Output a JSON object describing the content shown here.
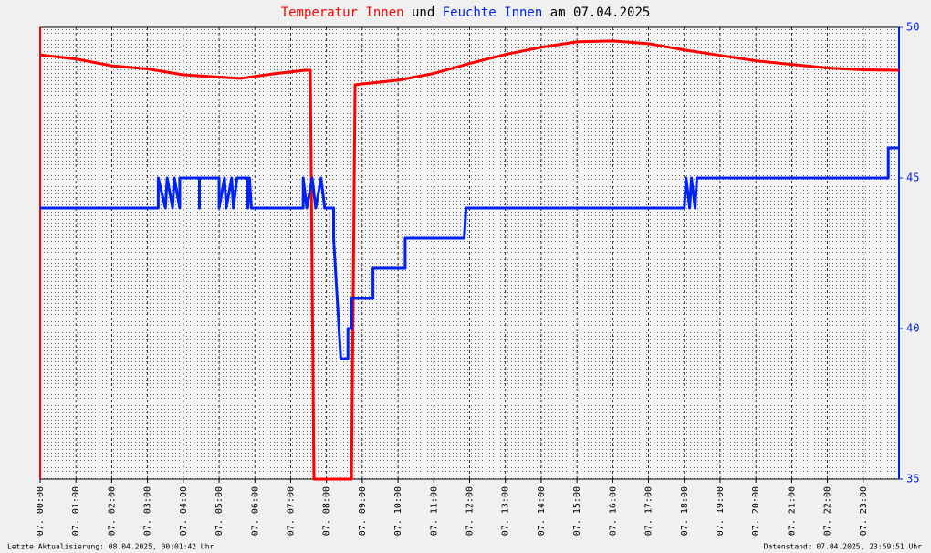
{
  "chart_data": {
    "type": "line",
    "title_parts": [
      "und",
      "am 07.04.2025"
    ],
    "footer_left": "Letzte Aktualisierung: 08.04.2025, 00:01:42 Uhr",
    "footer_right": "Datenstand: 07.04.2025, 23:59:51 Uhr",
    "xlim": [
      0,
      24
    ],
    "xticks": [
      {
        "value": 0,
        "label": "07. 00:00"
      },
      {
        "value": 1,
        "label": "07. 01:00"
      },
      {
        "value": 2,
        "label": "07. 02:00"
      },
      {
        "value": 3,
        "label": "07. 03:00"
      },
      {
        "value": 4,
        "label": "07. 04:00"
      },
      {
        "value": 5,
        "label": "07. 05:00"
      },
      {
        "value": 6,
        "label": "07. 06:00"
      },
      {
        "value": 7,
        "label": "07. 07:00"
      },
      {
        "value": 8,
        "label": "07. 08:00"
      },
      {
        "value": 9,
        "label": "07. 09:00"
      },
      {
        "value": 10,
        "label": "07. 10:00"
      },
      {
        "value": 11,
        "label": "07. 11:00"
      },
      {
        "value": 12,
        "label": "07. 12:00"
      },
      {
        "value": 13,
        "label": "07. 13:00"
      },
      {
        "value": 14,
        "label": "07. 14:00"
      },
      {
        "value": 15,
        "label": "07. 15:00"
      },
      {
        "value": 16,
        "label": "07. 16:00"
      },
      {
        "value": 17,
        "label": "07. 17:00"
      },
      {
        "value": 18,
        "label": "07. 18:00"
      },
      {
        "value": 19,
        "label": "07. 19:00"
      },
      {
        "value": 20,
        "label": "07. 20:00"
      },
      {
        "value": 21,
        "label": "07. 21:00"
      },
      {
        "value": 22,
        "label": "07. 22:00"
      },
      {
        "value": 23,
        "label": "07. 23:00"
      }
    ],
    "ylim": [
      15,
      25
    ],
    "y2lim": [
      35,
      50
    ],
    "y2ticks": [
      35,
      40,
      45,
      50
    ],
    "grid": true,
    "series": [
      {
        "name": "Temperatur Innen",
        "color": "#ff0000",
        "axis": "y",
        "x": [
          0,
          1,
          2,
          3,
          4,
          5,
          5.6,
          6.5,
          7.4,
          7.55,
          7.65,
          8.7,
          8.8,
          10,
          11,
          12,
          13,
          14,
          15,
          16,
          17,
          18,
          19,
          20,
          21,
          22,
          23,
          24
        ],
        "values": [
          24.39,
          24.3,
          24.15,
          24.08,
          23.95,
          23.9,
          23.87,
          23.97,
          24.05,
          24.05,
          15,
          15,
          23.73,
          23.83,
          23.98,
          24.2,
          24.4,
          24.56,
          24.68,
          24.7,
          24.64,
          24.5,
          24.38,
          24.26,
          24.18,
          24.1,
          24.06,
          24.05
        ]
      },
      {
        "name": "Feuchte Innen",
        "color": "#0022ee",
        "axis": "y2",
        "x": [
          0,
          3.3,
          3.3,
          3.5,
          3.55,
          3.7,
          3.75,
          3.9,
          3.9,
          4.45,
          4.45,
          4.45,
          5.0,
          5.0,
          5.15,
          5.2,
          5.35,
          5.4,
          5.5,
          5.8,
          5.8,
          5.85,
          5.9,
          7.35,
          7.35,
          7.45,
          7.6,
          7.7,
          7.85,
          7.95,
          8.2,
          8.2,
          8.3,
          8.35,
          8.4,
          8.6,
          8.6,
          8.7,
          8.7,
          9.3,
          9.3,
          10.2,
          10.2,
          11.85,
          11.9,
          18.0,
          18.05,
          18.15,
          18.2,
          18.3,
          18.35,
          23.7,
          23.7,
          24
        ],
        "values": [
          44,
          44,
          45,
          44,
          45,
          44,
          45,
          44,
          45,
          45,
          44,
          45,
          45,
          44,
          45,
          44,
          45,
          44,
          45,
          45,
          44,
          45,
          44,
          44,
          45,
          44,
          45,
          44,
          45,
          44,
          44,
          43,
          41,
          40,
          39,
          39,
          40,
          40,
          41,
          41,
          42,
          42,
          43,
          43,
          44,
          44,
          45,
          44,
          45,
          44,
          45,
          45,
          46,
          46
        ]
      }
    ]
  }
}
